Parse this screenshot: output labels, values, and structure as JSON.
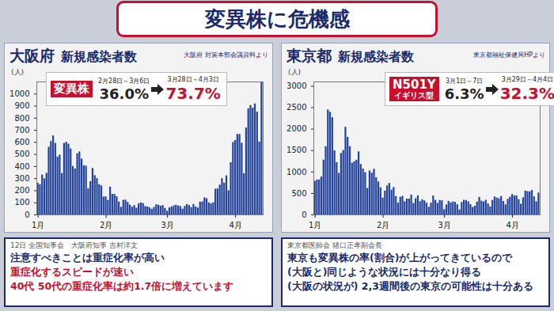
{
  "title": "変異株に危機感",
  "chart_data": [
    {
      "type": "bar",
      "title": "大阪府",
      "subtitle": "新規感染者数",
      "source": "大阪府 対策本部会議資料より",
      "ylabel": "(人)",
      "color": "#24439a",
      "grid": false,
      "ylim": [
        0,
        1100
      ],
      "yticks": [
        0,
        100,
        200,
        300,
        400,
        500,
        600,
        700,
        800,
        900,
        1000
      ],
      "categories": [
        "1月",
        null,
        null,
        null,
        null,
        null,
        null,
        null,
        null,
        null,
        null,
        null,
        null,
        null,
        null,
        null,
        null,
        null,
        null,
        null,
        null,
        null,
        null,
        null,
        null,
        null,
        null,
        null,
        null,
        null,
        null,
        "2月",
        null,
        null,
        null,
        null,
        null,
        null,
        null,
        null,
        null,
        null,
        null,
        null,
        null,
        null,
        null,
        null,
        null,
        null,
        null,
        null,
        null,
        null,
        null,
        null,
        null,
        null,
        null,
        "3月",
        null,
        null,
        null,
        null,
        null,
        null,
        null,
        null,
        null,
        null,
        null,
        null,
        null,
        null,
        null,
        null,
        null,
        null,
        null,
        null,
        null,
        null,
        null,
        null,
        null,
        null,
        null,
        null,
        null,
        null,
        "4月",
        null,
        null,
        null,
        null,
        null,
        null,
        null,
        null,
        null,
        null,
        null,
        null
      ],
      "values": [
        262,
        250,
        330,
        299,
        344,
        560,
        607,
        654,
        592,
        478,
        495,
        342,
        592,
        601,
        585,
        546,
        401,
        380,
        506,
        521,
        462,
        407,
        404,
        216,
        275,
        384,
        325,
        300,
        250,
        240,
        148,
        150,
        120,
        230,
        170,
        170,
        150,
        107,
        63,
        121,
        122,
        104,
        81,
        64,
        77,
        56,
        92,
        99,
        94,
        69,
        66,
        59,
        47,
        62,
        84,
        81,
        72,
        77,
        54,
        30,
        58,
        66,
        75,
        80,
        74,
        70,
        48,
        70,
        86,
        78,
        61,
        87,
        66,
        57,
        106,
        108,
        141,
        135,
        100,
        91,
        101,
        213,
        215,
        246,
        300,
        263,
        323,
        200,
        432,
        599,
        616,
        666,
        666,
        593,
        341,
        719,
        878,
        905,
        883,
        918,
        851,
        603,
        1099
      ],
      "annotation": {
        "label": "変異株",
        "periods": [
          "2月28日～3月6日",
          "3月28日～4月3日"
        ],
        "values": [
          36.0,
          73.7
        ],
        "value_labels": [
          "36.0%",
          "73.7%"
        ]
      }
    },
    {
      "type": "bar",
      "title": "東京都",
      "subtitle": "新規感染者数",
      "source": "東京都福祉保健局HPより",
      "ylabel": "(人)",
      "color": "#24439a",
      "grid": false,
      "ylim": [
        0,
        3100
      ],
      "yticks": [
        0,
        500,
        1000,
        1500,
        2000,
        2500,
        3000
      ],
      "categories": [
        "1月",
        null,
        null,
        null,
        null,
        null,
        null,
        null,
        null,
        null,
        null,
        null,
        null,
        null,
        null,
        null,
        null,
        null,
        null,
        null,
        null,
        null,
        null,
        null,
        null,
        null,
        null,
        null,
        null,
        null,
        null,
        "2月",
        null,
        null,
        null,
        null,
        null,
        null,
        null,
        null,
        null,
        null,
        null,
        null,
        null,
        null,
        null,
        null,
        null,
        null,
        null,
        null,
        null,
        null,
        null,
        null,
        null,
        null,
        null,
        "3月",
        null,
        null,
        null,
        null,
        null,
        null,
        null,
        null,
        null,
        null,
        null,
        null,
        null,
        null,
        null,
        null,
        null,
        null,
        null,
        null,
        null,
        null,
        null,
        null,
        null,
        null,
        null,
        null,
        null,
        null,
        "4月",
        null,
        null,
        null,
        null,
        null,
        null,
        null,
        null,
        null,
        null,
        null,
        null
      ],
      "values": [
        783,
        814,
        816,
        884,
        1278,
        1591,
        2447,
        2392,
        2268,
        1494,
        1219,
        970,
        1433,
        1502,
        2044,
        1809,
        1592,
        1204,
        1240,
        1274,
        1471,
        1175,
        1070,
        986,
        618,
        1026,
        973,
        1064,
        868,
        769,
        633,
        393,
        556,
        676,
        734,
        577,
        639,
        429,
        276,
        412,
        434,
        307,
        369,
        371,
        463,
        266,
        378,
        445,
        307,
        353,
        327,
        272,
        178,
        275,
        442,
        340,
        270,
        337,
        329,
        121,
        232,
        316,
        279,
        301,
        293,
        237,
        116,
        290,
        340,
        335,
        304,
        239,
        175,
        204,
        300,
        409,
        323,
        303,
        342,
        256,
        187,
        337,
        420,
        394,
        376,
        430,
        313,
        234,
        364,
        414,
        475,
        440,
        446,
        355,
        249,
        399,
        555,
        545,
        537,
        570,
        421,
        306,
        510
      ],
      "annotation": {
        "label": "N501Y",
        "sublabel": "イギリス型",
        "periods": [
          "3月1日～7日",
          "3月29日～4月4日"
        ],
        "values": [
          6.3,
          32.3
        ],
        "value_labels": [
          "6.3%",
          "32.3%"
        ]
      }
    }
  ],
  "captions": [
    {
      "event": "12日 全国知事会",
      "speaker": "大阪府知事 吉村洋文",
      "lines": [
        {
          "text": "注意すべきことは重症化率が高い",
          "color": "#1b2a6b"
        },
        {
          "text": "重症化するスピードが速い",
          "color": "#c8102e"
        },
        {
          "text": "40代 50代の重症化率は約1.7倍に増えています",
          "color": "#c8102e"
        }
      ]
    },
    {
      "speaker": "東京都医師会 猪口正孝副会長",
      "lines": [
        {
          "text": "東京も変異株の率(割合)が上がってきているので",
          "color": "#1b2a6b"
        },
        {
          "text": "(大阪と)同じような状況には十分なり得る",
          "color": "#1b2a6b"
        },
        {
          "text": "(大阪の状況が) 2,3週間後の東京の可能性は十分ある",
          "color": "#1b2a6b"
        }
      ]
    }
  ]
}
